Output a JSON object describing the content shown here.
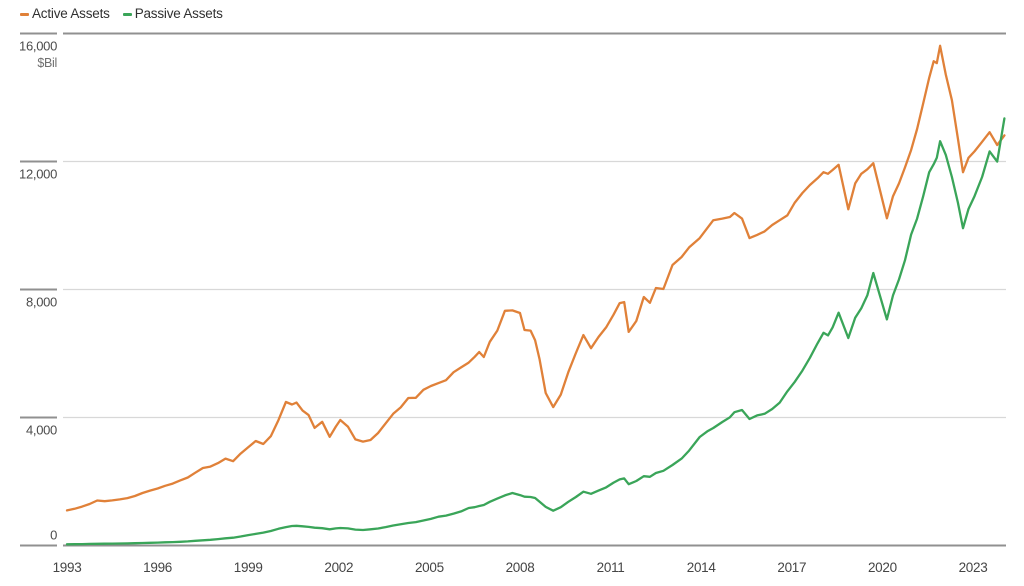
{
  "chart_data": {
    "type": "line",
    "title": "",
    "xlabel": "",
    "ylabel": "$Bil",
    "xlim": [
      1993.0,
      2024.04
    ],
    "ylim": [
      0,
      16000
    ],
    "grid": "horizontal",
    "legend_position": "top-left",
    "y_ticks": [
      {
        "value": 16000,
        "label": "16,000"
      },
      {
        "value": 12000,
        "label": "12,000"
      },
      {
        "value": 8000,
        "label": "8,000"
      },
      {
        "value": 4000,
        "label": "4,000"
      },
      {
        "value": 0,
        "label": "0"
      }
    ],
    "x_ticks": [
      {
        "value": 1993,
        "label": "1993"
      },
      {
        "value": 1996,
        "label": "1996"
      },
      {
        "value": 1999,
        "label": "1999"
      },
      {
        "value": 2002,
        "label": "2002"
      },
      {
        "value": 2005,
        "label": "2005"
      },
      {
        "value": 2008,
        "label": "2008"
      },
      {
        "value": 2011,
        "label": "2011"
      },
      {
        "value": 2014,
        "label": "2014"
      },
      {
        "value": 2017,
        "label": "2017"
      },
      {
        "value": 2020,
        "label": "2020"
      },
      {
        "value": 2023,
        "label": "2023"
      }
    ],
    "series": [
      {
        "name": "Active Assets",
        "color": "#E08139",
        "points": [
          [
            1993.0,
            1080
          ],
          [
            1993.25,
            1130
          ],
          [
            1993.5,
            1200
          ],
          [
            1993.75,
            1280
          ],
          [
            1994.0,
            1390
          ],
          [
            1994.25,
            1370
          ],
          [
            1994.5,
            1395
          ],
          [
            1994.75,
            1425
          ],
          [
            1995.0,
            1465
          ],
          [
            1995.25,
            1530
          ],
          [
            1995.5,
            1625
          ],
          [
            1995.75,
            1700
          ],
          [
            1996.0,
            1765
          ],
          [
            1996.25,
            1850
          ],
          [
            1996.5,
            1920
          ],
          [
            1996.75,
            2020
          ],
          [
            1997.0,
            2110
          ],
          [
            1997.25,
            2260
          ],
          [
            1997.5,
            2405
          ],
          [
            1997.75,
            2450
          ],
          [
            1998.0,
            2560
          ],
          [
            1998.25,
            2700
          ],
          [
            1998.5,
            2620
          ],
          [
            1998.75,
            2855
          ],
          [
            1999.0,
            3055
          ],
          [
            1999.25,
            3250
          ],
          [
            1999.5,
            3155
          ],
          [
            1999.75,
            3400
          ],
          [
            2000.0,
            3900
          ],
          [
            2000.25,
            4470
          ],
          [
            2000.45,
            4390
          ],
          [
            2000.6,
            4450
          ],
          [
            2000.8,
            4200
          ],
          [
            2001.0,
            4060
          ],
          [
            2001.2,
            3660
          ],
          [
            2001.45,
            3850
          ],
          [
            2001.7,
            3380
          ],
          [
            2001.9,
            3700
          ],
          [
            2002.05,
            3905
          ],
          [
            2002.3,
            3700
          ],
          [
            2002.55,
            3300
          ],
          [
            2002.8,
            3230
          ],
          [
            2003.05,
            3280
          ],
          [
            2003.3,
            3500
          ],
          [
            2003.55,
            3800
          ],
          [
            2003.8,
            4100
          ],
          [
            2004.05,
            4300
          ],
          [
            2004.3,
            4595
          ],
          [
            2004.55,
            4600
          ],
          [
            2004.8,
            4850
          ],
          [
            2005.05,
            4970
          ],
          [
            2005.3,
            5060
          ],
          [
            2005.55,
            5150
          ],
          [
            2005.8,
            5400
          ],
          [
            2006.05,
            5550
          ],
          [
            2006.3,
            5700
          ],
          [
            2006.5,
            5880
          ],
          [
            2006.65,
            6030
          ],
          [
            2006.8,
            5875
          ],
          [
            2007.0,
            6350
          ],
          [
            2007.25,
            6700
          ],
          [
            2007.5,
            7320
          ],
          [
            2007.75,
            7330
          ],
          [
            2008.0,
            7250
          ],
          [
            2008.15,
            6720
          ],
          [
            2008.35,
            6700
          ],
          [
            2008.5,
            6400
          ],
          [
            2008.65,
            5800
          ],
          [
            2008.85,
            4750
          ],
          [
            2009.1,
            4310
          ],
          [
            2009.35,
            4700
          ],
          [
            2009.6,
            5400
          ],
          [
            2009.85,
            6000
          ],
          [
            2010.1,
            6560
          ],
          [
            2010.35,
            6150
          ],
          [
            2010.6,
            6500
          ],
          [
            2010.85,
            6800
          ],
          [
            2011.1,
            7200
          ],
          [
            2011.3,
            7560
          ],
          [
            2011.45,
            7590
          ],
          [
            2011.6,
            6660
          ],
          [
            2011.85,
            7000
          ],
          [
            2012.1,
            7750
          ],
          [
            2012.3,
            7570
          ],
          [
            2012.5,
            8030
          ],
          [
            2012.75,
            8000
          ],
          [
            2013.05,
            8750
          ],
          [
            2013.35,
            9000
          ],
          [
            2013.6,
            9300
          ],
          [
            2013.95,
            9590
          ],
          [
            2014.2,
            9900
          ],
          [
            2014.4,
            10150
          ],
          [
            2014.7,
            10200
          ],
          [
            2014.95,
            10250
          ],
          [
            2015.1,
            10375
          ],
          [
            2015.35,
            10200
          ],
          [
            2015.6,
            9590
          ],
          [
            2015.85,
            9690
          ],
          [
            2016.1,
            9800
          ],
          [
            2016.35,
            10000
          ],
          [
            2016.6,
            10150
          ],
          [
            2016.85,
            10300
          ],
          [
            2017.1,
            10700
          ],
          [
            2017.35,
            11000
          ],
          [
            2017.6,
            11250
          ],
          [
            2017.85,
            11460
          ],
          [
            2018.05,
            11650
          ],
          [
            2018.2,
            11600
          ],
          [
            2018.35,
            11720
          ],
          [
            2018.55,
            11880
          ],
          [
            2018.87,
            10490
          ],
          [
            2019.1,
            11300
          ],
          [
            2019.3,
            11600
          ],
          [
            2019.5,
            11740
          ],
          [
            2019.7,
            11930
          ],
          [
            2020.15,
            10210
          ],
          [
            2020.35,
            10900
          ],
          [
            2020.55,
            11300
          ],
          [
            2020.75,
            11800
          ],
          [
            2020.95,
            12340
          ],
          [
            2021.15,
            13000
          ],
          [
            2021.35,
            13800
          ],
          [
            2021.55,
            14600
          ],
          [
            2021.7,
            15120
          ],
          [
            2021.8,
            15060
          ],
          [
            2021.91,
            15600
          ],
          [
            2022.1,
            14700
          ],
          [
            2022.3,
            13900
          ],
          [
            2022.5,
            12700
          ],
          [
            2022.67,
            11650
          ],
          [
            2022.85,
            12100
          ],
          [
            2023.05,
            12300
          ],
          [
            2023.3,
            12600
          ],
          [
            2023.55,
            12900
          ],
          [
            2023.8,
            12500
          ],
          [
            2024.04,
            12800
          ]
        ]
      },
      {
        "name": "Passive Assets",
        "color": "#3AA559",
        "points": [
          [
            1993.0,
            23
          ],
          [
            1993.25,
            26
          ],
          [
            1993.5,
            29
          ],
          [
            1993.75,
            33
          ],
          [
            1994.0,
            37
          ],
          [
            1994.25,
            40
          ],
          [
            1994.5,
            43
          ],
          [
            1994.75,
            46
          ],
          [
            1995.0,
            51
          ],
          [
            1995.25,
            56
          ],
          [
            1995.5,
            62
          ],
          [
            1995.75,
            69
          ],
          [
            1996.0,
            76
          ],
          [
            1996.25,
            84
          ],
          [
            1996.5,
            92
          ],
          [
            1996.75,
            101
          ],
          [
            1997.0,
            114
          ],
          [
            1997.25,
            130
          ],
          [
            1997.5,
            148
          ],
          [
            1997.75,
            163
          ],
          [
            1998.0,
            184
          ],
          [
            1998.25,
            208
          ],
          [
            1998.5,
            228
          ],
          [
            1998.75,
            266
          ],
          [
            1999.0,
            308
          ],
          [
            1999.25,
            348
          ],
          [
            1999.5,
            386
          ],
          [
            1999.75,
            437
          ],
          [
            2000.0,
            505
          ],
          [
            2000.25,
            560
          ],
          [
            2000.45,
            595
          ],
          [
            2000.6,
            600
          ],
          [
            2000.8,
            585
          ],
          [
            2001.0,
            565
          ],
          [
            2001.2,
            540
          ],
          [
            2001.45,
            525
          ],
          [
            2001.7,
            490
          ],
          [
            2001.9,
            520
          ],
          [
            2002.05,
            532
          ],
          [
            2002.3,
            520
          ],
          [
            2002.55,
            480
          ],
          [
            2002.8,
            468
          ],
          [
            2003.05,
            490
          ],
          [
            2003.3,
            515
          ],
          [
            2003.55,
            560
          ],
          [
            2003.8,
            610
          ],
          [
            2004.05,
            650
          ],
          [
            2004.3,
            688
          ],
          [
            2004.55,
            715
          ],
          [
            2004.8,
            765
          ],
          [
            2005.05,
            815
          ],
          [
            2005.3,
            884
          ],
          [
            2005.55,
            920
          ],
          [
            2005.8,
            980
          ],
          [
            2006.05,
            1050
          ],
          [
            2006.3,
            1156
          ],
          [
            2006.5,
            1180
          ],
          [
            2006.65,
            1220
          ],
          [
            2006.8,
            1250
          ],
          [
            2007.0,
            1350
          ],
          [
            2007.25,
            1450
          ],
          [
            2007.5,
            1550
          ],
          [
            2007.75,
            1625
          ],
          [
            2008.0,
            1560
          ],
          [
            2008.15,
            1510
          ],
          [
            2008.35,
            1500
          ],
          [
            2008.5,
            1469
          ],
          [
            2008.65,
            1350
          ],
          [
            2008.85,
            1190
          ],
          [
            2009.1,
            1072
          ],
          [
            2009.35,
            1180
          ],
          [
            2009.6,
            1350
          ],
          [
            2009.85,
            1500
          ],
          [
            2010.1,
            1666
          ],
          [
            2010.35,
            1600
          ],
          [
            2010.6,
            1700
          ],
          [
            2010.85,
            1800
          ],
          [
            2011.1,
            1950
          ],
          [
            2011.3,
            2050
          ],
          [
            2011.45,
            2080
          ],
          [
            2011.6,
            1900
          ],
          [
            2011.85,
            2000
          ],
          [
            2012.1,
            2150
          ],
          [
            2012.3,
            2130
          ],
          [
            2012.5,
            2250
          ],
          [
            2012.75,
            2320
          ],
          [
            2013.05,
            2500
          ],
          [
            2013.35,
            2700
          ],
          [
            2013.6,
            2950
          ],
          [
            2013.95,
            3375
          ],
          [
            2014.2,
            3550
          ],
          [
            2014.4,
            3656
          ],
          [
            2014.7,
            3844
          ],
          [
            2014.95,
            3990
          ],
          [
            2015.1,
            4150
          ],
          [
            2015.35,
            4219
          ],
          [
            2015.6,
            3938
          ],
          [
            2015.85,
            4050
          ],
          [
            2016.1,
            4100
          ],
          [
            2016.35,
            4250
          ],
          [
            2016.6,
            4450
          ],
          [
            2016.85,
            4800
          ],
          [
            2017.1,
            5100
          ],
          [
            2017.35,
            5450
          ],
          [
            2017.6,
            5850
          ],
          [
            2017.85,
            6300
          ],
          [
            2018.05,
            6630
          ],
          [
            2018.2,
            6550
          ],
          [
            2018.35,
            6800
          ],
          [
            2018.55,
            7260
          ],
          [
            2018.87,
            6470
          ],
          [
            2019.1,
            7100
          ],
          [
            2019.3,
            7400
          ],
          [
            2019.5,
            7800
          ],
          [
            2019.7,
            8500
          ],
          [
            2020.15,
            7050
          ],
          [
            2020.35,
            7800
          ],
          [
            2020.55,
            8300
          ],
          [
            2020.75,
            8900
          ],
          [
            2020.95,
            9700
          ],
          [
            2021.15,
            10200
          ],
          [
            2021.35,
            10900
          ],
          [
            2021.55,
            11650
          ],
          [
            2021.7,
            11900
          ],
          [
            2021.8,
            12100
          ],
          [
            2021.91,
            12620
          ],
          [
            2022.1,
            12190
          ],
          [
            2022.3,
            11500
          ],
          [
            2022.5,
            10700
          ],
          [
            2022.67,
            9900
          ],
          [
            2022.85,
            10500
          ],
          [
            2023.05,
            10900
          ],
          [
            2023.3,
            11500
          ],
          [
            2023.55,
            12300
          ],
          [
            2023.8,
            11980
          ],
          [
            2024.04,
            13330
          ]
        ]
      }
    ],
    "colors": {
      "active": "#E08139",
      "passive": "#3AA559",
      "grid_light": "#D8D8D8",
      "grid_dark": "#909090",
      "axis_label": "#4B4B4B",
      "legend_text": "#303030"
    }
  }
}
